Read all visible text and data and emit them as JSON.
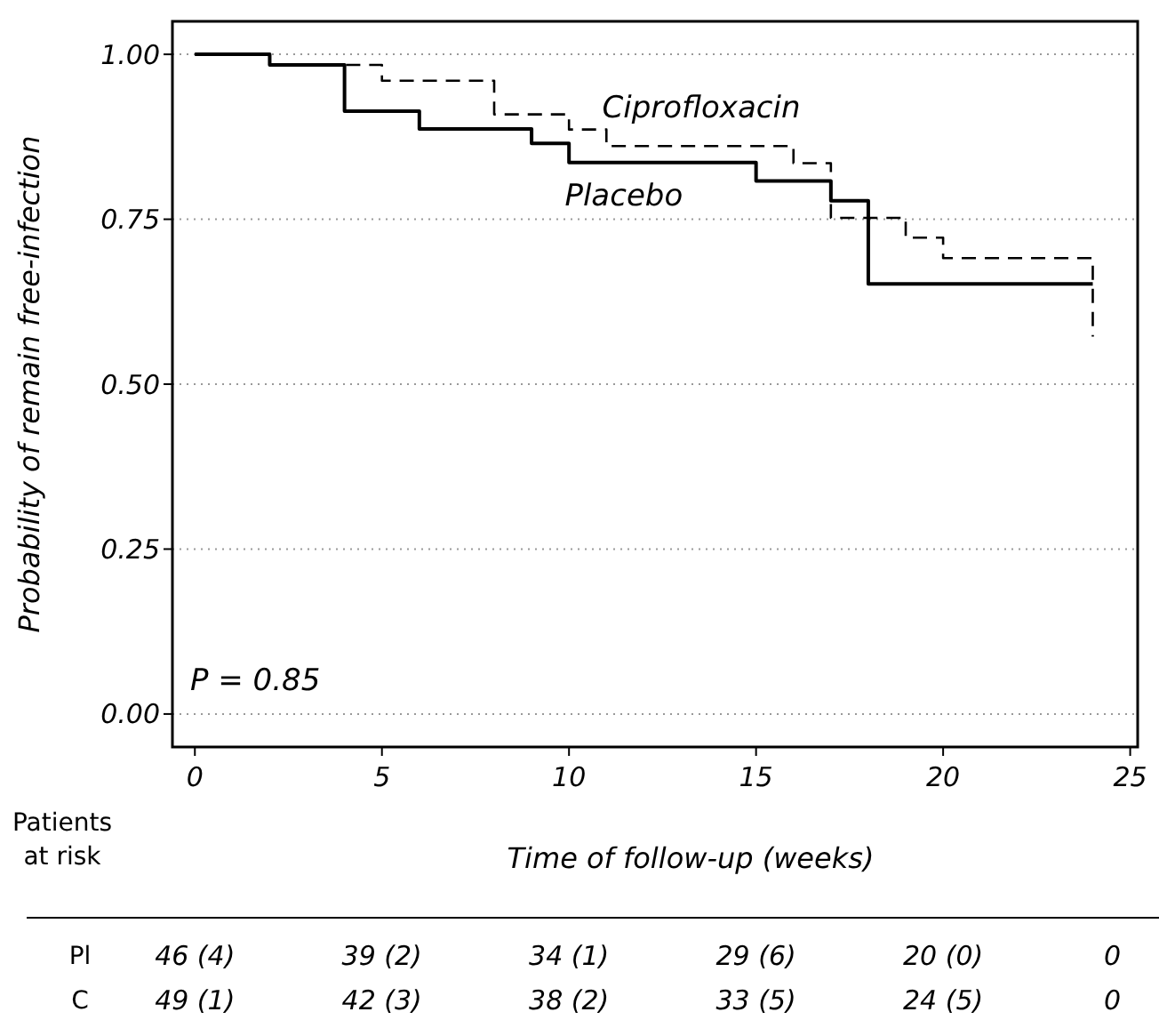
{
  "chart_data": {
    "type": "step",
    "xlabel": "Time of follow-up (weeks)",
    "ylabel": "Probability of remain free-infection",
    "xlim": [
      -0.6,
      25.2
    ],
    "ylim": [
      -0.05,
      1.05
    ],
    "xticks": [
      0,
      5,
      10,
      15,
      20,
      25
    ],
    "yticks": [
      {
        "value": 0,
        "label": "0.00"
      },
      {
        "value": 0.25,
        "label": "0.25"
      },
      {
        "value": 0.5,
        "label": "0.50"
      },
      {
        "value": 0.75,
        "label": "0.75"
      },
      {
        "value": 1,
        "label": "1.00"
      }
    ],
    "grid": "y",
    "series": [
      {
        "name": "Ciprofloxacin",
        "color": "#000000",
        "line_style": "dashed",
        "x": [
          0,
          2,
          5,
          8,
          10,
          11,
          16,
          17,
          19,
          20,
          24,
          24
        ],
        "values": [
          1,
          0.984,
          0.96,
          0.909,
          0.886,
          0.861,
          0.835,
          0.752,
          0.722,
          0.691,
          0.691,
          0.572
        ]
      },
      {
        "name": "Placebo",
        "color": "#000000",
        "line_style": "solid",
        "x": [
          0,
          2,
          4,
          6,
          9,
          10,
          15,
          17,
          18,
          24
        ],
        "values": [
          1,
          0.984,
          0.914,
          0.887,
          0.865,
          0.836,
          0.808,
          0.778,
          0.652,
          0.652
        ]
      }
    ],
    "annotations": [
      "P = 0.85",
      "Patients",
      "at risk",
      "Pl",
      "46 (4)",
      "39 (2)",
      "34 (1)",
      "29 (6)",
      "20 (0)",
      "0",
      "C",
      "49 (1)",
      "42 (3)",
      "38 (2)",
      "33 (5)",
      "24 (5)",
      "0"
    ]
  }
}
